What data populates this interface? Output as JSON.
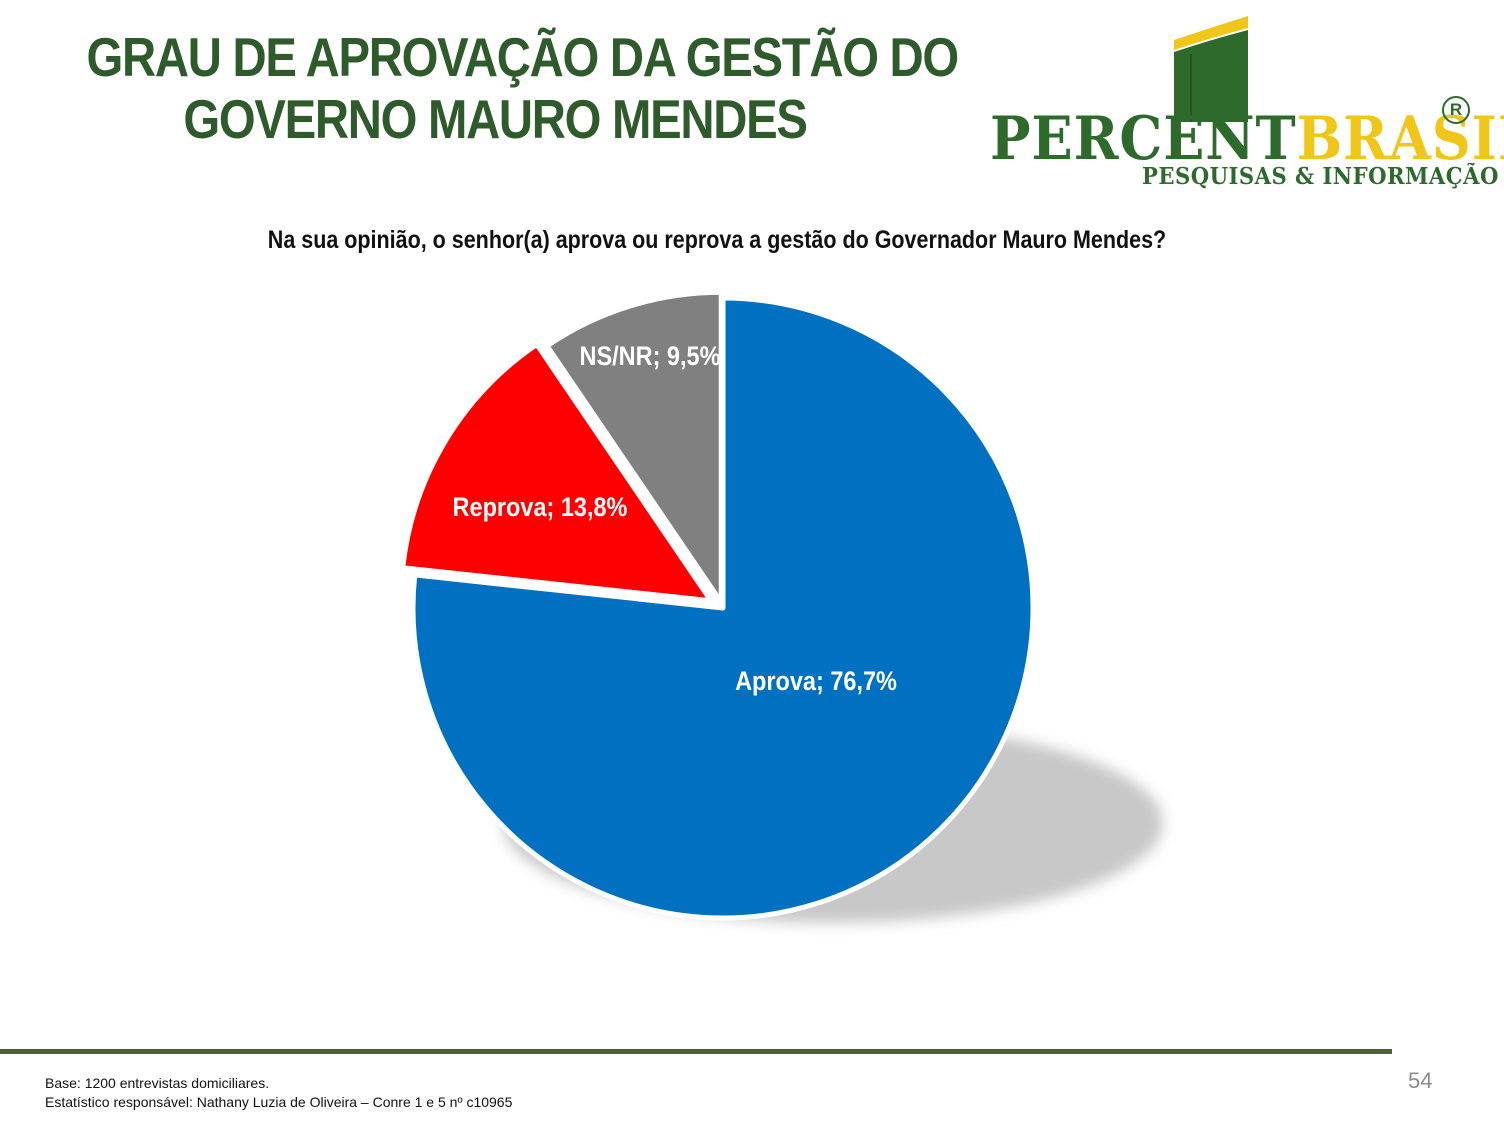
{
  "header": {
    "title_line1": "GRAU DE APROVAÇÃO DA GESTÃO DO",
    "title_line2": "GOVERNO MAURO MENDES"
  },
  "logo": {
    "word_part1": "PERCENT",
    "word_part2": "BRASIL",
    "registered_mark": "R",
    "subtitle": "PESQUISAS & INFORMAÇÃO",
    "colors": {
      "green": "#2e6a2c",
      "yellow": "#f1c61b"
    }
  },
  "chart_data": {
    "type": "pie",
    "title": "Na sua opinião, o senhor(a) aprova ou reprova a gestão do Governador Mauro Mendes?",
    "slices": [
      {
        "label": "Aprova",
        "value": 76.7,
        "display": "Aprova; 76,7%",
        "color": "#0070c0"
      },
      {
        "label": "Reprova",
        "value": 13.8,
        "display": "Reprova; 13,8%",
        "color": "#ff0000"
      },
      {
        "label": "NS/NR",
        "value": 9.5,
        "display": "NS/NR; 9,5%",
        "color": "#808080"
      }
    ],
    "start": "12 o'clock",
    "direction": "clockwise",
    "shadow": true
  },
  "footer": {
    "base": "Base: 1200 entrevistas domiciliares.",
    "statistician": "Estatístico responsável: Nathany Luzia de Oliveira – Conre 1 e 5 nº c10965",
    "page_number": "54"
  }
}
